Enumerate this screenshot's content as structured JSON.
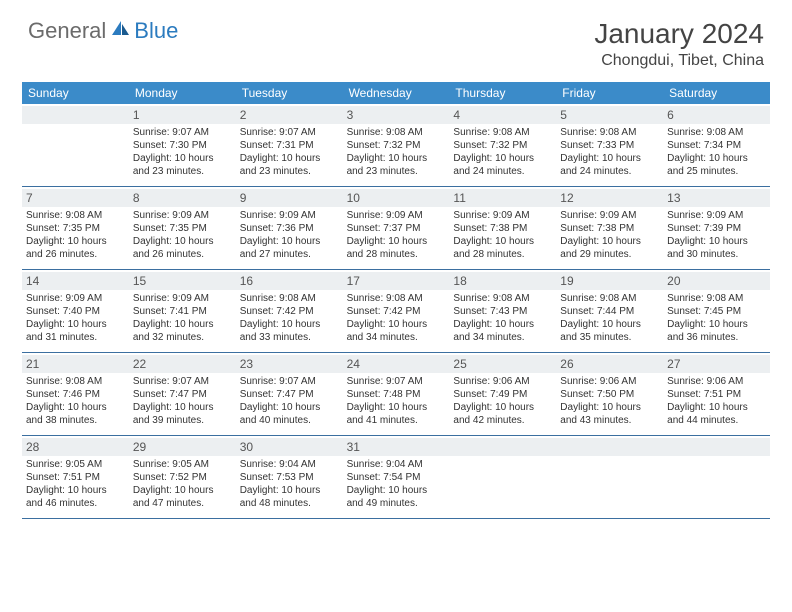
{
  "logo": {
    "general": "General",
    "blue": "Blue"
  },
  "title": "January 2024",
  "location": "Chongdui, Tibet, China",
  "accent_color": "#3b8bc9",
  "divider_color": "#3b6fa0",
  "daynum_bg": "#eceff1",
  "day_headers": [
    "Sunday",
    "Monday",
    "Tuesday",
    "Wednesday",
    "Thursday",
    "Friday",
    "Saturday"
  ],
  "weeks": [
    [
      {
        "num": "",
        "lines": []
      },
      {
        "num": "1",
        "lines": [
          "Sunrise: 9:07 AM",
          "Sunset: 7:30 PM",
          "Daylight: 10 hours",
          "and 23 minutes."
        ]
      },
      {
        "num": "2",
        "lines": [
          "Sunrise: 9:07 AM",
          "Sunset: 7:31 PM",
          "Daylight: 10 hours",
          "and 23 minutes."
        ]
      },
      {
        "num": "3",
        "lines": [
          "Sunrise: 9:08 AM",
          "Sunset: 7:32 PM",
          "Daylight: 10 hours",
          "and 23 minutes."
        ]
      },
      {
        "num": "4",
        "lines": [
          "Sunrise: 9:08 AM",
          "Sunset: 7:32 PM",
          "Daylight: 10 hours",
          "and 24 minutes."
        ]
      },
      {
        "num": "5",
        "lines": [
          "Sunrise: 9:08 AM",
          "Sunset: 7:33 PM",
          "Daylight: 10 hours",
          "and 24 minutes."
        ]
      },
      {
        "num": "6",
        "lines": [
          "Sunrise: 9:08 AM",
          "Sunset: 7:34 PM",
          "Daylight: 10 hours",
          "and 25 minutes."
        ]
      }
    ],
    [
      {
        "num": "7",
        "lines": [
          "Sunrise: 9:08 AM",
          "Sunset: 7:35 PM",
          "Daylight: 10 hours",
          "and 26 minutes."
        ]
      },
      {
        "num": "8",
        "lines": [
          "Sunrise: 9:09 AM",
          "Sunset: 7:35 PM",
          "Daylight: 10 hours",
          "and 26 minutes."
        ]
      },
      {
        "num": "9",
        "lines": [
          "Sunrise: 9:09 AM",
          "Sunset: 7:36 PM",
          "Daylight: 10 hours",
          "and 27 minutes."
        ]
      },
      {
        "num": "10",
        "lines": [
          "Sunrise: 9:09 AM",
          "Sunset: 7:37 PM",
          "Daylight: 10 hours",
          "and 28 minutes."
        ]
      },
      {
        "num": "11",
        "lines": [
          "Sunrise: 9:09 AM",
          "Sunset: 7:38 PM",
          "Daylight: 10 hours",
          "and 28 minutes."
        ]
      },
      {
        "num": "12",
        "lines": [
          "Sunrise: 9:09 AM",
          "Sunset: 7:38 PM",
          "Daylight: 10 hours",
          "and 29 minutes."
        ]
      },
      {
        "num": "13",
        "lines": [
          "Sunrise: 9:09 AM",
          "Sunset: 7:39 PM",
          "Daylight: 10 hours",
          "and 30 minutes."
        ]
      }
    ],
    [
      {
        "num": "14",
        "lines": [
          "Sunrise: 9:09 AM",
          "Sunset: 7:40 PM",
          "Daylight: 10 hours",
          "and 31 minutes."
        ]
      },
      {
        "num": "15",
        "lines": [
          "Sunrise: 9:09 AM",
          "Sunset: 7:41 PM",
          "Daylight: 10 hours",
          "and 32 minutes."
        ]
      },
      {
        "num": "16",
        "lines": [
          "Sunrise: 9:08 AM",
          "Sunset: 7:42 PM",
          "Daylight: 10 hours",
          "and 33 minutes."
        ]
      },
      {
        "num": "17",
        "lines": [
          "Sunrise: 9:08 AM",
          "Sunset: 7:42 PM",
          "Daylight: 10 hours",
          "and 34 minutes."
        ]
      },
      {
        "num": "18",
        "lines": [
          "Sunrise: 9:08 AM",
          "Sunset: 7:43 PM",
          "Daylight: 10 hours",
          "and 34 minutes."
        ]
      },
      {
        "num": "19",
        "lines": [
          "Sunrise: 9:08 AM",
          "Sunset: 7:44 PM",
          "Daylight: 10 hours",
          "and 35 minutes."
        ]
      },
      {
        "num": "20",
        "lines": [
          "Sunrise: 9:08 AM",
          "Sunset: 7:45 PM",
          "Daylight: 10 hours",
          "and 36 minutes."
        ]
      }
    ],
    [
      {
        "num": "21",
        "lines": [
          "Sunrise: 9:08 AM",
          "Sunset: 7:46 PM",
          "Daylight: 10 hours",
          "and 38 minutes."
        ]
      },
      {
        "num": "22",
        "lines": [
          "Sunrise: 9:07 AM",
          "Sunset: 7:47 PM",
          "Daylight: 10 hours",
          "and 39 minutes."
        ]
      },
      {
        "num": "23",
        "lines": [
          "Sunrise: 9:07 AM",
          "Sunset: 7:47 PM",
          "Daylight: 10 hours",
          "and 40 minutes."
        ]
      },
      {
        "num": "24",
        "lines": [
          "Sunrise: 9:07 AM",
          "Sunset: 7:48 PM",
          "Daylight: 10 hours",
          "and 41 minutes."
        ]
      },
      {
        "num": "25",
        "lines": [
          "Sunrise: 9:06 AM",
          "Sunset: 7:49 PM",
          "Daylight: 10 hours",
          "and 42 minutes."
        ]
      },
      {
        "num": "26",
        "lines": [
          "Sunrise: 9:06 AM",
          "Sunset: 7:50 PM",
          "Daylight: 10 hours",
          "and 43 minutes."
        ]
      },
      {
        "num": "27",
        "lines": [
          "Sunrise: 9:06 AM",
          "Sunset: 7:51 PM",
          "Daylight: 10 hours",
          "and 44 minutes."
        ]
      }
    ],
    [
      {
        "num": "28",
        "lines": [
          "Sunrise: 9:05 AM",
          "Sunset: 7:51 PM",
          "Daylight: 10 hours",
          "and 46 minutes."
        ]
      },
      {
        "num": "29",
        "lines": [
          "Sunrise: 9:05 AM",
          "Sunset: 7:52 PM",
          "Daylight: 10 hours",
          "and 47 minutes."
        ]
      },
      {
        "num": "30",
        "lines": [
          "Sunrise: 9:04 AM",
          "Sunset: 7:53 PM",
          "Daylight: 10 hours",
          "and 48 minutes."
        ]
      },
      {
        "num": "31",
        "lines": [
          "Sunrise: 9:04 AM",
          "Sunset: 7:54 PM",
          "Daylight: 10 hours",
          "and 49 minutes."
        ]
      },
      {
        "num": "",
        "lines": []
      },
      {
        "num": "",
        "lines": []
      },
      {
        "num": "",
        "lines": []
      }
    ]
  ]
}
